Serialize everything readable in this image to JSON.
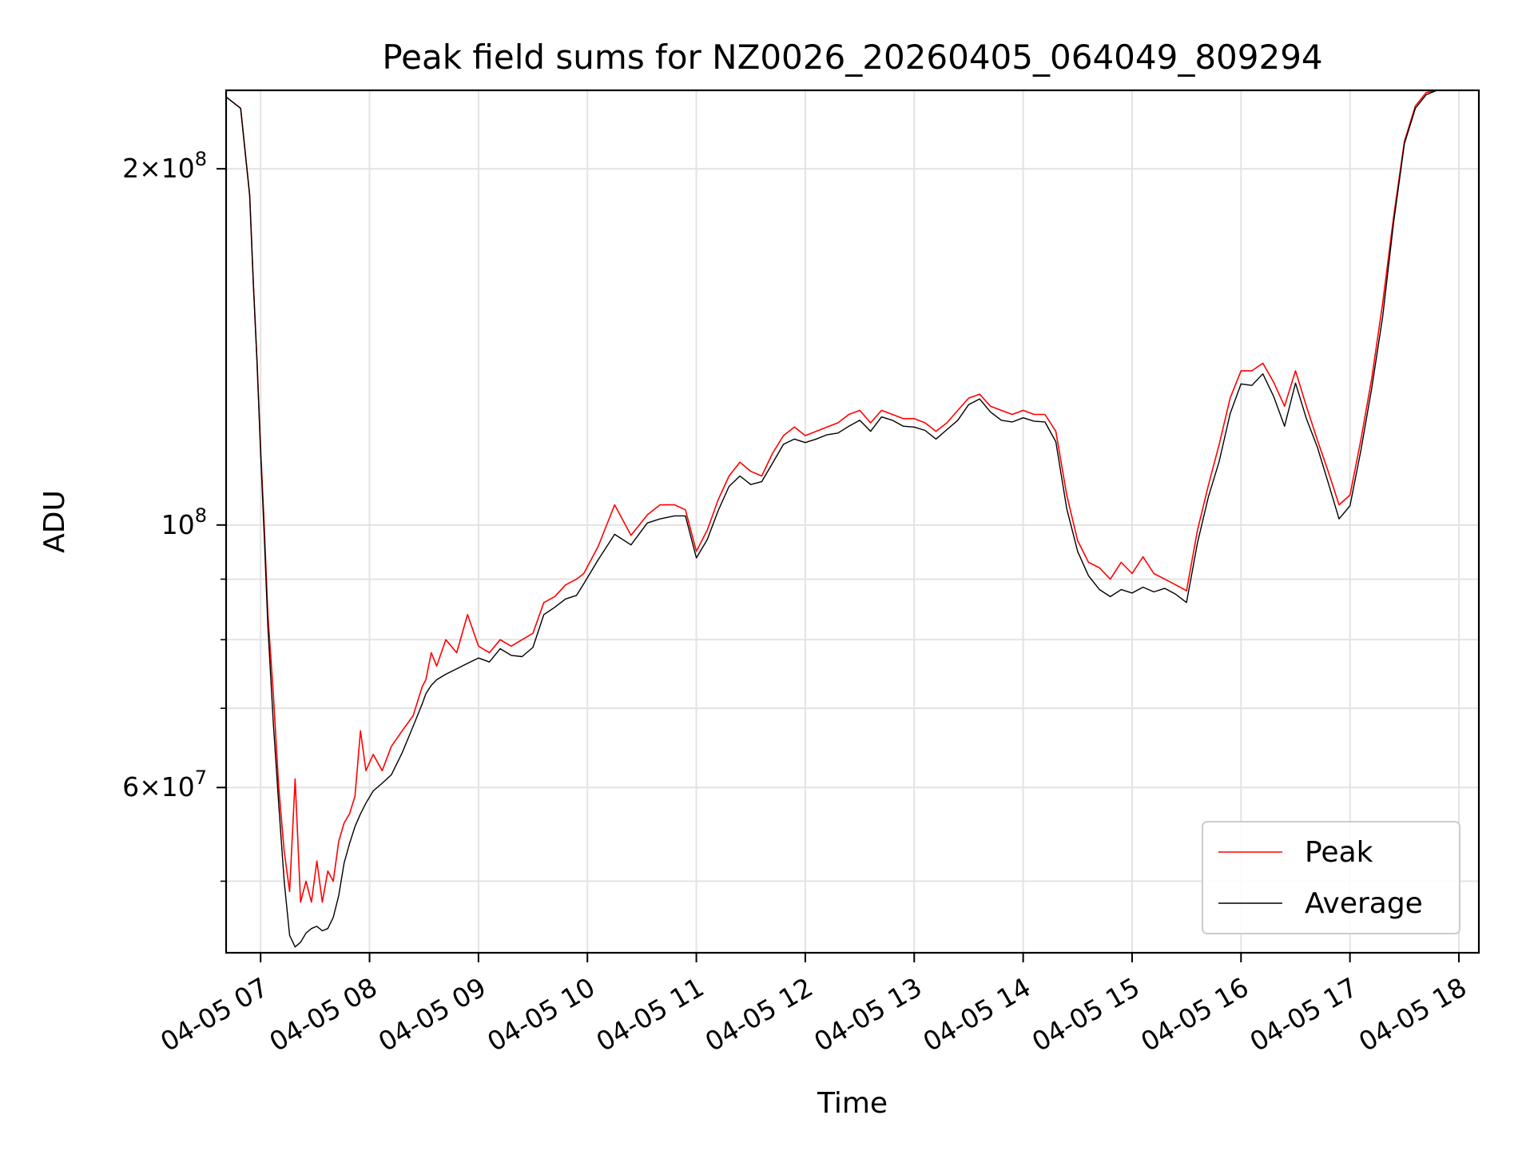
{
  "chart_data": {
    "type": "line",
    "title": "Peak field sums for NZ0026_20260405_064049_809294",
    "xlabel": "Time",
    "ylabel": "ADU",
    "y_scale": "log",
    "ylim": [
      43500000,
      233000000
    ],
    "xlim": [
      "04-05 06:41",
      "04-05 18:11"
    ],
    "x_ticks": [
      "04-05 07",
      "04-05 08",
      "04-05 09",
      "04-05 10",
      "04-05 11",
      "04-05 12",
      "04-05 13",
      "04-05 14",
      "04-05 15",
      "04-05 16",
      "04-05 17",
      "04-05 18"
    ],
    "y_major_ticks": [
      {
        "value": 60000000,
        "mantissa": "6",
        "exponent": "7"
      },
      {
        "value": 100000000,
        "mantissa": "",
        "exponent": "8"
      },
      {
        "value": 200000000,
        "mantissa": "2",
        "exponent": "8"
      }
    ],
    "y_minor_ticks": [
      40000000,
      50000000,
      70000000,
      80000000,
      90000000
    ],
    "grid": true,
    "legend_position": "lower-right",
    "series": [
      {
        "name": "Average",
        "color": "#000000",
        "x": [
          "04-05 06:41",
          "04-05 06:49",
          "04-05 06:54",
          "04-05 06:56",
          "04-05 06:58",
          "04-05 07:00",
          "04-05 07:02",
          "04-05 07:04",
          "04-05 07:07",
          "04-05 07:10",
          "04-05 07:13",
          "04-05 07:16",
          "04-05 07:19",
          "04-05 07:22",
          "04-05 07:25",
          "04-05 07:28",
          "04-05 07:31",
          "04-05 07:34",
          "04-05 07:37",
          "04-05 07:40",
          "04-05 07:43",
          "04-05 07:46",
          "04-05 07:49",
          "04-05 07:52",
          "04-05 07:55",
          "04-05 07:58",
          "04-05 08:02",
          "04-05 08:07",
          "04-05 08:12",
          "04-05 08:18",
          "04-05 08:24",
          "04-05 08:29",
          "04-05 08:31",
          "04-05 08:34",
          "04-05 08:37",
          "04-05 08:42",
          "04-05 08:48",
          "04-05 08:54",
          "04-05 09:00",
          "04-05 09:06",
          "04-05 09:12",
          "04-05 09:18",
          "04-05 09:24",
          "04-05 09:30",
          "04-05 09:36",
          "04-05 09:42",
          "04-05 09:48",
          "04-05 09:54",
          "04-05 09:58",
          "04-05 10:06",
          "04-05 10:15",
          "04-05 10:24",
          "04-05 10:33",
          "04-05 10:40",
          "04-05 10:48",
          "04-05 10:54",
          "04-05 11:00",
          "04-05 11:06",
          "04-05 11:12",
          "04-05 11:18",
          "04-05 11:24",
          "04-05 11:30",
          "04-05 11:36",
          "04-05 11:42",
          "04-05 11:48",
          "04-05 11:54",
          "04-05 12:00",
          "04-05 12:06",
          "04-05 12:12",
          "04-05 12:18",
          "04-05 12:24",
          "04-05 12:30",
          "04-05 12:36",
          "04-05 12:42",
          "04-05 12:48",
          "04-05 12:54",
          "04-05 13:00",
          "04-05 13:06",
          "04-05 13:12",
          "04-05 13:18",
          "04-05 13:24",
          "04-05 13:30",
          "04-05 13:36",
          "04-05 13:42",
          "04-05 13:48",
          "04-05 13:54",
          "04-05 14:00",
          "04-05 14:06",
          "04-05 14:12",
          "04-05 14:18",
          "04-05 14:24",
          "04-05 14:30",
          "04-05 14:36",
          "04-05 14:42",
          "04-05 14:48",
          "04-05 14:54",
          "04-05 15:00",
          "04-05 15:06",
          "04-05 15:12",
          "04-05 15:18",
          "04-05 15:24",
          "04-05 15:30",
          "04-05 15:36",
          "04-05 15:42",
          "04-05 15:48",
          "04-05 15:54",
          "04-05 16:00",
          "04-05 16:06",
          "04-05 16:12",
          "04-05 16:18",
          "04-05 16:24",
          "04-05 16:30",
          "04-05 16:36",
          "04-05 16:42",
          "04-05 16:48",
          "04-05 16:54",
          "04-05 17:00",
          "04-05 17:06",
          "04-05 17:12",
          "04-05 17:18",
          "04-05 17:24",
          "04-05 17:30",
          "04-05 17:36",
          "04-05 17:42",
          "04-05 17:48",
          "04-05 17:54",
          "04-05 18:00",
          "04-05 18:05",
          "04-05 18:11"
        ],
        "y": [
          230000000,
          225000000,
          190000000,
          160000000,
          138000000,
          115000000,
          98000000,
          82000000,
          68000000,
          58000000,
          50000000,
          45000000,
          44000000,
          44400000,
          45200000,
          45600000,
          45800000,
          45400000,
          45600000,
          46600000,
          48600000,
          51800000,
          53800000,
          55600000,
          57000000,
          58200000,
          59600000,
          60500000,
          61500000,
          64200000,
          67600000,
          70600000,
          72000000,
          73200000,
          74000000,
          74800000,
          75600000,
          76400000,
          77200000,
          76600000,
          78600000,
          77600000,
          77400000,
          78800000,
          84000000,
          85200000,
          86600000,
          87200000,
          89200000,
          93500000,
          98200000,
          96200000,
          100400000,
          101200000,
          101800000,
          101800000,
          93800000,
          97200000,
          102800000,
          107800000,
          110000000,
          108200000,
          108800000,
          112800000,
          117000000,
          118200000,
          117400000,
          118200000,
          119200000,
          119600000,
          121200000,
          122600000,
          120000000,
          123400000,
          122600000,
          121200000,
          121000000,
          120200000,
          118200000,
          120400000,
          122600000,
          126400000,
          127800000,
          124600000,
          122600000,
          122200000,
          123200000,
          122400000,
          122200000,
          117600000,
          103200000,
          95000000,
          90600000,
          88200000,
          87000000,
          88200000,
          87600000,
          88600000,
          87800000,
          88400000,
          87400000,
          86000000,
          96600000,
          105600000,
          113200000,
          124200000,
          131600000,
          131200000,
          134200000,
          128400000,
          121200000,
          131800000,
          123000000,
          116400000,
          108600000,
          101200000,
          103800000,
          115600000,
          130500000,
          150000000,
          180000000,
          210000000,
          225000000,
          231000000,
          233000000,
          233000000,
          233000000,
          233000000,
          233000000
        ]
      },
      {
        "name": "Peak",
        "color": "#ff0000",
        "x": [
          "04-05 06:41",
          "04-05 06:49",
          "04-05 06:54",
          "04-05 06:56",
          "04-05 06:58",
          "04-05 07:00",
          "04-05 07:02",
          "04-05 07:04",
          "04-05 07:07",
          "04-05 07:10",
          "04-05 07:13",
          "04-05 07:16",
          "04-05 07:19",
          "04-05 07:22",
          "04-05 07:25",
          "04-05 07:28",
          "04-05 07:31",
          "04-05 07:34",
          "04-05 07:37",
          "04-05 07:40",
          "04-05 07:43",
          "04-05 07:46",
          "04-05 07:49",
          "04-05 07:52",
          "04-05 07:55",
          "04-05 07:58",
          "04-05 08:02",
          "04-05 08:07",
          "04-05 08:12",
          "04-05 08:18",
          "04-05 08:24",
          "04-05 08:29",
          "04-05 08:31",
          "04-05 08:34",
          "04-05 08:37",
          "04-05 08:42",
          "04-05 08:48",
          "04-05 08:54",
          "04-05 09:00",
          "04-05 09:06",
          "04-05 09:12",
          "04-05 09:18",
          "04-05 09:24",
          "04-05 09:30",
          "04-05 09:36",
          "04-05 09:42",
          "04-05 09:48",
          "04-05 09:54",
          "04-05 09:58",
          "04-05 10:06",
          "04-05 10:15",
          "04-05 10:24",
          "04-05 10:33",
          "04-05 10:40",
          "04-05 10:48",
          "04-05 10:54",
          "04-05 11:00",
          "04-05 11:06",
          "04-05 11:12",
          "04-05 11:18",
          "04-05 11:24",
          "04-05 11:30",
          "04-05 11:36",
          "04-05 11:42",
          "04-05 11:48",
          "04-05 11:54",
          "04-05 12:00",
          "04-05 12:06",
          "04-05 12:12",
          "04-05 12:18",
          "04-05 12:24",
          "04-05 12:30",
          "04-05 12:36",
          "04-05 12:42",
          "04-05 12:48",
          "04-05 12:54",
          "04-05 13:00",
          "04-05 13:06",
          "04-05 13:12",
          "04-05 13:18",
          "04-05 13:24",
          "04-05 13:30",
          "04-05 13:36",
          "04-05 13:42",
          "04-05 13:48",
          "04-05 13:54",
          "04-05 14:00",
          "04-05 14:06",
          "04-05 14:12",
          "04-05 14:18",
          "04-05 14:24",
          "04-05 14:30",
          "04-05 14:36",
          "04-05 14:42",
          "04-05 14:48",
          "04-05 14:54",
          "04-05 15:00",
          "04-05 15:06",
          "04-05 15:12",
          "04-05 15:18",
          "04-05 15:24",
          "04-05 15:30",
          "04-05 15:36",
          "04-05 15:42",
          "04-05 15:48",
          "04-05 15:54",
          "04-05 16:00",
          "04-05 16:06",
          "04-05 16:12",
          "04-05 16:18",
          "04-05 16:24",
          "04-05 16:30",
          "04-05 16:36",
          "04-05 16:42",
          "04-05 16:48",
          "04-05 16:54",
          "04-05 17:00",
          "04-05 17:06",
          "04-05 17:12",
          "04-05 17:18",
          "04-05 17:24",
          "04-05 17:30",
          "04-05 17:36",
          "04-05 17:42",
          "04-05 17:48",
          "04-05 17:54",
          "04-05 18:00",
          "04-05 18:05",
          "04-05 18:11"
        ],
        "y": [
          230000000,
          225000000,
          190000000,
          160000000,
          138000000,
          116000000,
          100000000,
          84000000,
          72000000,
          60000000,
          53000000,
          49000000,
          61000000,
          48000000,
          50000000,
          48000000,
          52000000,
          48000000,
          51000000,
          50000000,
          54000000,
          56000000,
          57000000,
          59000000,
          67000000,
          62000000,
          64000000,
          62000000,
          65000000,
          67000000,
          69000000,
          73000000,
          74000000,
          78000000,
          76000000,
          80000000,
          78000000,
          84000000,
          79000000,
          78000000,
          80000000,
          79000000,
          80000000,
          81000000,
          86000000,
          87000000,
          89000000,
          90000000,
          91000000,
          96000000,
          104000000,
          98000000,
          102000000,
          104000000,
          104000000,
          103000000,
          95000000,
          99000000,
          105000000,
          110000000,
          113000000,
          111000000,
          110000000,
          115000000,
          119000000,
          121000000,
          119000000,
          120000000,
          121000000,
          122000000,
          124000000,
          125000000,
          122000000,
          125000000,
          124000000,
          123000000,
          123000000,
          122000000,
          120000000,
          122000000,
          125000000,
          128000000,
          129000000,
          126000000,
          125000000,
          124000000,
          125000000,
          124000000,
          124000000,
          120000000,
          106000000,
          97000000,
          93000000,
          92000000,
          90000000,
          93000000,
          91000000,
          94000000,
          91000000,
          90000000,
          89000000,
          88000000,
          99000000,
          108000000,
          117000000,
          128000000,
          135000000,
          135000000,
          137000000,
          132000000,
          126000000,
          135000000,
          126000000,
          118000000,
          111000000,
          104000000,
          106000000,
          118000000,
          133000000,
          154000000,
          182000000,
          211000000,
          226000000,
          232000000,
          233000000,
          233000000,
          233000000,
          233000000,
          233000000
        ]
      }
    ]
  }
}
